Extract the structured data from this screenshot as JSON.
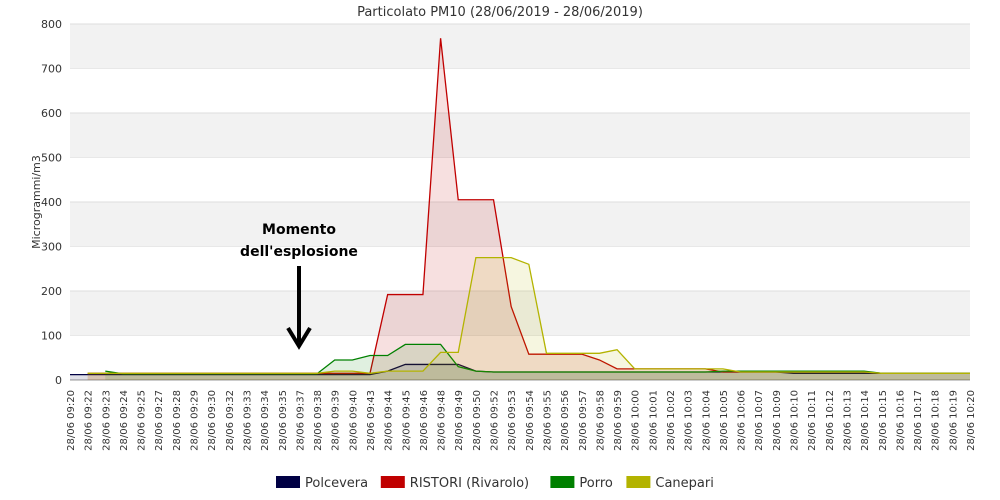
{
  "chart_data": {
    "type": "area",
    "title": "Particolato PM10 (28/06/2019 - 28/06/2019)",
    "y_label": "Microgrammi/m3",
    "annotation": [
      "Momento",
      "dell'esplosione"
    ],
    "categories": [
      "28/06 09:20",
      "28/06 09:22",
      "28/06 09:23",
      "28/06 09:24",
      "28/06 09:25",
      "28/06 09:27",
      "28/06 09:28",
      "28/06 09:29",
      "28/06 09:30",
      "28/06 09:32",
      "28/06 09:33",
      "28/06 09:34",
      "28/06 09:35",
      "28/06 09:37",
      "28/06 09:38",
      "28/06 09:39",
      "28/06 09:40",
      "28/06 09:43",
      "28/06 09:44",
      "28/06 09:45",
      "28/06 09:46",
      "28/06 09:48",
      "28/06 09:49",
      "28/06 09:50",
      "28/06 09:52",
      "28/06 09:53",
      "28/06 09:54",
      "28/06 09:55",
      "28/06 09:56",
      "28/06 09:57",
      "28/06 09:58",
      "28/06 09:59",
      "28/06 10:00",
      "28/06 10:01",
      "28/06 10:02",
      "28/06 10:03",
      "28/06 10:04",
      "28/06 10:05",
      "28/06 10:06",
      "28/06 10:07",
      "28/06 10:09",
      "28/06 10:10",
      "28/06 10:11",
      "28/06 10:12",
      "28/06 10:13",
      "28/06 10:14",
      "28/06 10:15",
      "28/06 10:16",
      "28/06 10:17",
      "28/06 10:18",
      "28/06 10:19",
      "28/06 10:20"
    ],
    "series": [
      {
        "name": "Polcevera",
        "color": "#000044",
        "values": [
          12,
          12,
          12,
          12,
          12,
          12,
          12,
          12,
          12,
          12,
          12,
          12,
          12,
          12,
          12,
          12,
          12,
          12,
          20,
          35,
          35,
          35,
          35,
          20,
          18,
          18,
          18,
          18,
          18,
          18,
          18,
          18,
          18,
          18,
          18,
          18,
          18,
          18,
          18,
          18,
          18,
          15,
          15,
          15,
          15,
          15,
          15,
          15,
          15,
          15,
          15,
          15
        ]
      },
      {
        "name": "RISTORI (Rivarolo)",
        "color": "#c00000",
        "values": [
          null,
          15,
          15,
          15,
          15,
          15,
          15,
          15,
          15,
          15,
          15,
          15,
          15,
          15,
          15,
          15,
          15,
          15,
          192,
          192,
          192,
          768,
          405,
          405,
          405,
          165,
          58,
          58,
          58,
          58,
          45,
          25,
          25,
          25,
          25,
          25,
          25,
          18,
          18,
          18,
          18,
          18,
          18,
          18,
          18,
          18,
          15,
          15,
          15,
          15,
          15,
          15
        ]
      },
      {
        "name": "Porro",
        "color": "#008000",
        "values": [
          null,
          null,
          20,
          14,
          14,
          14,
          14,
          14,
          14,
          14,
          14,
          14,
          14,
          14,
          14,
          45,
          45,
          55,
          55,
          80,
          80,
          80,
          30,
          20,
          18,
          18,
          18,
          18,
          18,
          18,
          18,
          18,
          18,
          18,
          18,
          18,
          18,
          20,
          20,
          20,
          20,
          20,
          20,
          20,
          20,
          20,
          15,
          15,
          15,
          15,
          15,
          15
        ]
      },
      {
        "name": "Canepari",
        "color": "#b3b300",
        "values": [
          null,
          15,
          15,
          15,
          15,
          15,
          15,
          15,
          15,
          15,
          15,
          15,
          15,
          15,
          15,
          20,
          20,
          15,
          20,
          20,
          20,
          62,
          62,
          275,
          275,
          275,
          260,
          60,
          60,
          60,
          60,
          68,
          25,
          25,
          25,
          25,
          25,
          25,
          18,
          18,
          18,
          18,
          18,
          18,
          18,
          18,
          15,
          15,
          15,
          15,
          15,
          15
        ]
      }
    ],
    "ylim": [
      0,
      800
    ],
    "yticks": [
      0,
      100,
      200,
      300,
      400,
      500,
      600,
      700,
      800
    ],
    "grid_bands": true,
    "legend": "bottom"
  }
}
